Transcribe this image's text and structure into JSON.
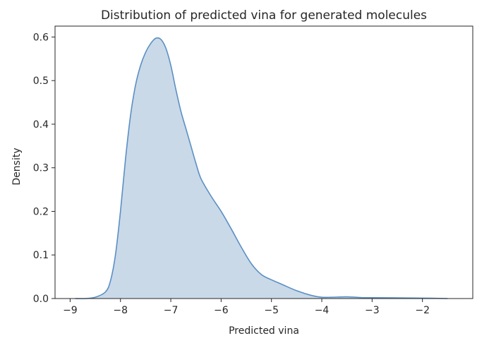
{
  "chart_data": {
    "type": "area",
    "title": "Distribution of predicted vina for generated molecules",
    "xlabel": "Predicted vina",
    "ylabel": "Density",
    "xlim": [
      -9.3,
      -1.0
    ],
    "ylim": [
      0.0,
      0.625
    ],
    "xticks": [
      -9,
      -8,
      -7,
      -6,
      -5,
      -4,
      -3,
      -2
    ],
    "xtick_labels": [
      "−9",
      "−8",
      "−7",
      "−6",
      "−5",
      "−4",
      "−3",
      "−2"
    ],
    "yticks": [
      0.0,
      0.1,
      0.2,
      0.3,
      0.4,
      0.5,
      0.6
    ],
    "ytick_labels": [
      "0.0",
      "0.1",
      "0.2",
      "0.3",
      "0.4",
      "0.5",
      "0.6"
    ],
    "grid": false,
    "line_color": "#5b8fc4",
    "fill_color": "#c9d9e8",
    "series": [
      {
        "x": [
          -8.9,
          -8.7,
          -8.5,
          -8.3,
          -8.2,
          -8.1,
          -8.0,
          -7.9,
          -7.8,
          -7.7,
          -7.6,
          -7.5,
          -7.4,
          -7.3,
          -7.2,
          -7.1,
          -7.0,
          -6.9,
          -6.8,
          -6.7,
          -6.6,
          -6.5,
          -6.4,
          -6.2,
          -6.0,
          -5.8,
          -5.6,
          -5.4,
          -5.2,
          -5.0,
          -4.8,
          -4.5,
          -4.2,
          -4.0,
          -3.8,
          -3.5,
          -3.2,
          -3.0,
          -2.5,
          -2.0,
          -1.5
        ],
        "y": [
          0.0,
          0.0,
          0.003,
          0.015,
          0.04,
          0.1,
          0.2,
          0.32,
          0.42,
          0.49,
          0.535,
          0.565,
          0.585,
          0.597,
          0.595,
          0.575,
          0.535,
          0.48,
          0.43,
          0.39,
          0.35,
          0.31,
          0.275,
          0.235,
          0.2,
          0.16,
          0.118,
          0.08,
          0.055,
          0.043,
          0.033,
          0.018,
          0.007,
          0.003,
          0.003,
          0.004,
          0.002,
          0.002,
          0.0015,
          0.001,
          0.0
        ]
      }
    ]
  }
}
